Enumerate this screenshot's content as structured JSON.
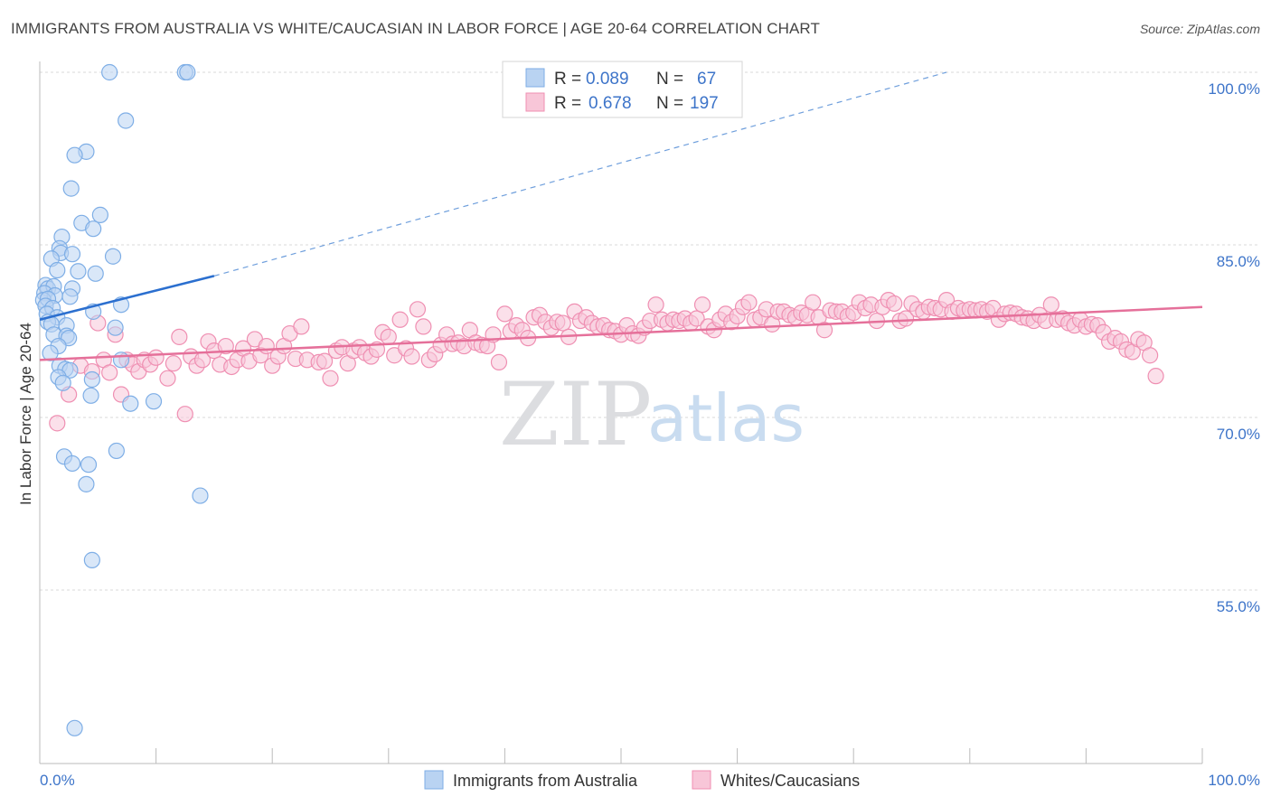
{
  "chart_data": {
    "type": "scatter",
    "title": "IMMIGRANTS FROM AUSTRALIA VS WHITE/CAUCASIAN IN LABOR FORCE | AGE 20-64 CORRELATION CHART",
    "source": "Source: ZipAtlas.com",
    "ylabel": "In Labor Force | Age 20-64",
    "xlim": [
      0,
      100
    ],
    "ylim": [
      40,
      102
    ],
    "x_tick_labels": [
      "0.0%",
      "100.0%"
    ],
    "y_ticks": [
      {
        "value": 100,
        "label": "100.0%"
      },
      {
        "value": 85,
        "label": "85.0%"
      },
      {
        "value": 70,
        "label": "70.0%"
      },
      {
        "value": 55,
        "label": "55.0%"
      }
    ],
    "legend": {
      "rows": [
        {
          "r_label": "R =",
          "r_value": "0.089",
          "n_label": "N =",
          "n_value": "67"
        },
        {
          "r_label": "R =",
          "r_value": "0.678",
          "n_label": "N =",
          "n_value": "197"
        }
      ]
    },
    "series": [
      {
        "name": "Immigrants from Australia",
        "color": "#7eaee6",
        "fill": "#b9d3f2",
        "trend": {
          "x0": 0,
          "y0": 78.5,
          "x1": 15,
          "y1": 82.3,
          "dash_to_x": 78,
          "dash_to_y": 100
        },
        "points": [
          [
            6,
            100
          ],
          [
            12.5,
            100
          ],
          [
            12.7,
            100
          ],
          [
            7.4,
            95.8
          ],
          [
            4,
            93.1
          ],
          [
            3,
            92.8
          ],
          [
            2.7,
            89.9
          ],
          [
            5.2,
            87.6
          ],
          [
            3.6,
            86.9
          ],
          [
            4.6,
            86.4
          ],
          [
            1.9,
            85.7
          ],
          [
            1.7,
            84.7
          ],
          [
            1.8,
            84.3
          ],
          [
            2.8,
            84.2
          ],
          [
            6.3,
            84
          ],
          [
            1,
            83.8
          ],
          [
            1.5,
            82.8
          ],
          [
            3.3,
            82.7
          ],
          [
            4.8,
            82.5
          ],
          [
            0.5,
            81.5
          ],
          [
            0.7,
            81.2
          ],
          [
            1.2,
            81.4
          ],
          [
            2.8,
            81.2
          ],
          [
            0.4,
            80.8
          ],
          [
            1.3,
            80.6
          ],
          [
            2.6,
            80.5
          ],
          [
            0.3,
            80.2
          ],
          [
            0.7,
            80.3
          ],
          [
            0.5,
            79.7
          ],
          [
            1.1,
            79.5
          ],
          [
            7,
            79.8
          ],
          [
            4.6,
            79.2
          ],
          [
            0.6,
            79
          ],
          [
            1.5,
            78.7
          ],
          [
            0.7,
            78.3
          ],
          [
            1,
            78.1
          ],
          [
            2.3,
            78
          ],
          [
            6.5,
            77.8
          ],
          [
            1.2,
            77.2
          ],
          [
            2.3,
            77.1
          ],
          [
            2.5,
            76.9
          ],
          [
            1.6,
            76.2
          ],
          [
            0.9,
            75.6
          ],
          [
            7,
            75
          ],
          [
            1.7,
            74.5
          ],
          [
            2.2,
            74.2
          ],
          [
            2.6,
            74.1
          ],
          [
            1.6,
            73.5
          ],
          [
            4.5,
            73.3
          ],
          [
            2,
            73
          ],
          [
            4.4,
            71.9
          ],
          [
            7.8,
            71.2
          ],
          [
            9.8,
            71.4
          ],
          [
            2.1,
            66.6
          ],
          [
            6.6,
            67.1
          ],
          [
            2.8,
            66
          ],
          [
            4.2,
            65.9
          ],
          [
            4,
            64.2
          ],
          [
            13.8,
            63.2
          ],
          [
            4.5,
            57.6
          ],
          [
            3,
            43
          ]
        ]
      },
      {
        "name": "Whites/Caucasians",
        "color": "#ef8fb2",
        "fill": "#f8c6d8",
        "trend": {
          "x0": 0,
          "y0": 75,
          "x1": 100,
          "y1": 79.6
        },
        "points": [
          [
            1.5,
            69.5
          ],
          [
            2.5,
            72
          ],
          [
            3.5,
            74.5
          ],
          [
            4.5,
            74
          ],
          [
            5,
            78.2
          ],
          [
            5.5,
            75
          ],
          [
            6,
            73.9
          ],
          [
            6.5,
            77.2
          ],
          [
            7,
            72
          ],
          [
            7.5,
            75
          ],
          [
            8,
            74.6
          ],
          [
            8.5,
            74
          ],
          [
            9,
            75
          ],
          [
            9.5,
            74.6
          ],
          [
            10,
            75.2
          ],
          [
            11,
            73.4
          ],
          [
            11.5,
            74.7
          ],
          [
            12,
            77
          ],
          [
            12.5,
            70.3
          ],
          [
            13,
            75.3
          ],
          [
            13.5,
            74.5
          ],
          [
            14,
            75
          ],
          [
            14.5,
            76.6
          ],
          [
            15,
            75.8
          ],
          [
            15.5,
            74.6
          ],
          [
            16,
            76.2
          ],
          [
            16.5,
            74.4
          ],
          [
            17,
            75
          ],
          [
            17.5,
            76
          ],
          [
            18,
            74.9
          ],
          [
            18.5,
            76.8
          ],
          [
            19,
            75.4
          ],
          [
            19.5,
            76.2
          ],
          [
            20,
            74.5
          ],
          [
            20.5,
            75.3
          ],
          [
            21,
            76.2
          ],
          [
            21.5,
            77.3
          ],
          [
            22,
            75.1
          ],
          [
            22.5,
            77.9
          ],
          [
            23,
            75
          ],
          [
            24,
            74.8
          ],
          [
            24.5,
            74.9
          ],
          [
            25,
            73.4
          ],
          [
            25.5,
            75.8
          ],
          [
            26,
            76.1
          ],
          [
            26.5,
            74.7
          ],
          [
            27,
            75.8
          ],
          [
            27.5,
            76.1
          ],
          [
            28,
            75.6
          ],
          [
            28.5,
            75.3
          ],
          [
            29,
            75.9
          ],
          [
            29.5,
            77.4
          ],
          [
            30,
            77
          ],
          [
            30.5,
            75.4
          ],
          [
            31,
            78.5
          ],
          [
            31.5,
            76
          ],
          [
            32,
            75.3
          ],
          [
            32.5,
            79.4
          ],
          [
            33,
            77.9
          ],
          [
            33.5,
            75
          ],
          [
            34,
            75.5
          ],
          [
            34.5,
            76.3
          ],
          [
            35,
            77.2
          ],
          [
            35.5,
            76.4
          ],
          [
            36,
            76.5
          ],
          [
            36.5,
            76.2
          ],
          [
            37,
            77.6
          ],
          [
            37.5,
            76.5
          ],
          [
            38,
            76.3
          ],
          [
            38.5,
            76.2
          ],
          [
            39,
            77.2
          ],
          [
            39.5,
            74.8
          ],
          [
            40,
            79
          ],
          [
            40.5,
            77.5
          ],
          [
            41,
            78
          ],
          [
            41.5,
            77.6
          ],
          [
            42,
            76.9
          ],
          [
            42.5,
            78.7
          ],
          [
            43,
            78.9
          ],
          [
            43.5,
            78.3
          ],
          [
            44,
            77.8
          ],
          [
            44.5,
            78.3
          ],
          [
            45,
            78.2
          ],
          [
            45.5,
            77
          ],
          [
            46,
            79.2
          ],
          [
            46.5,
            78.4
          ],
          [
            47,
            78.7
          ],
          [
            47.5,
            78.2
          ],
          [
            48,
            77.9
          ],
          [
            48.5,
            78
          ],
          [
            49,
            77.6
          ],
          [
            49.5,
            77.5
          ],
          [
            50,
            77.2
          ],
          [
            50.5,
            78
          ],
          [
            51,
            77.3
          ],
          [
            51.5,
            77.1
          ],
          [
            52,
            77.8
          ],
          [
            52.5,
            78.4
          ],
          [
            53,
            79.8
          ],
          [
            53.5,
            78.5
          ],
          [
            54,
            78.2
          ],
          [
            54.5,
            78.5
          ],
          [
            55,
            78.4
          ],
          [
            55.5,
            78.6
          ],
          [
            56,
            78.2
          ],
          [
            56.5,
            78.6
          ],
          [
            57,
            79.8
          ],
          [
            57.5,
            77.9
          ],
          [
            58,
            77.6
          ],
          [
            58.5,
            78.5
          ],
          [
            59,
            79
          ],
          [
            59.5,
            78.3
          ],
          [
            60,
            78.8
          ],
          [
            60.5,
            79.6
          ],
          [
            61,
            80
          ],
          [
            61.5,
            78.5
          ],
          [
            62,
            78.7
          ],
          [
            62.5,
            79.4
          ],
          [
            63,
            78.1
          ],
          [
            63.5,
            79.2
          ],
          [
            64,
            79.2
          ],
          [
            64.5,
            78.9
          ],
          [
            65,
            78.7
          ],
          [
            65.5,
            79.1
          ],
          [
            66,
            78.9
          ],
          [
            66.5,
            80
          ],
          [
            67,
            78.7
          ],
          [
            67.5,
            77.6
          ],
          [
            68,
            79.3
          ],
          [
            68.5,
            79.2
          ],
          [
            69,
            79.2
          ],
          [
            69.5,
            78.8
          ],
          [
            70,
            79.1
          ],
          [
            70.5,
            80
          ],
          [
            71,
            79.5
          ],
          [
            71.5,
            79.8
          ],
          [
            72,
            78.4
          ],
          [
            72.5,
            79.6
          ],
          [
            73,
            80.2
          ],
          [
            73.5,
            79.9
          ],
          [
            74,
            78.4
          ],
          [
            74.5,
            78.6
          ],
          [
            75,
            79.9
          ],
          [
            75.5,
            79.4
          ],
          [
            76,
            79.2
          ],
          [
            76.5,
            79.6
          ],
          [
            77,
            79.5
          ],
          [
            77.5,
            79.4
          ],
          [
            78,
            80.2
          ],
          [
            78.5,
            79.2
          ],
          [
            79,
            79.5
          ],
          [
            79.5,
            79.3
          ],
          [
            80,
            79.4
          ],
          [
            80.5,
            79.3
          ],
          [
            81,
            79.4
          ],
          [
            81.5,
            79.2
          ],
          [
            82,
            79.5
          ],
          [
            82.5,
            78.5
          ],
          [
            83,
            79
          ],
          [
            83.5,
            79.1
          ],
          [
            84,
            79
          ],
          [
            84.5,
            78.7
          ],
          [
            85,
            78.6
          ],
          [
            85.5,
            78.4
          ],
          [
            86,
            78.9
          ],
          [
            86.5,
            78.4
          ],
          [
            87,
            79.8
          ],
          [
            87.5,
            78.5
          ],
          [
            88,
            78.6
          ],
          [
            88.5,
            78.2
          ],
          [
            89,
            78
          ],
          [
            89.5,
            78.5
          ],
          [
            90,
            77.9
          ],
          [
            90.5,
            78.1
          ],
          [
            91,
            78
          ],
          [
            91.5,
            77.4
          ],
          [
            92,
            76.6
          ],
          [
            92.5,
            76.9
          ],
          [
            93,
            76.6
          ],
          [
            93.5,
            75.9
          ],
          [
            94,
            75.7
          ],
          [
            94.5,
            76.8
          ],
          [
            95,
            76.5
          ],
          [
            95.5,
            75.4
          ],
          [
            96,
            73.6
          ]
        ]
      }
    ]
  },
  "watermark": {
    "zip": "ZIP",
    "atlas": "atlas"
  }
}
